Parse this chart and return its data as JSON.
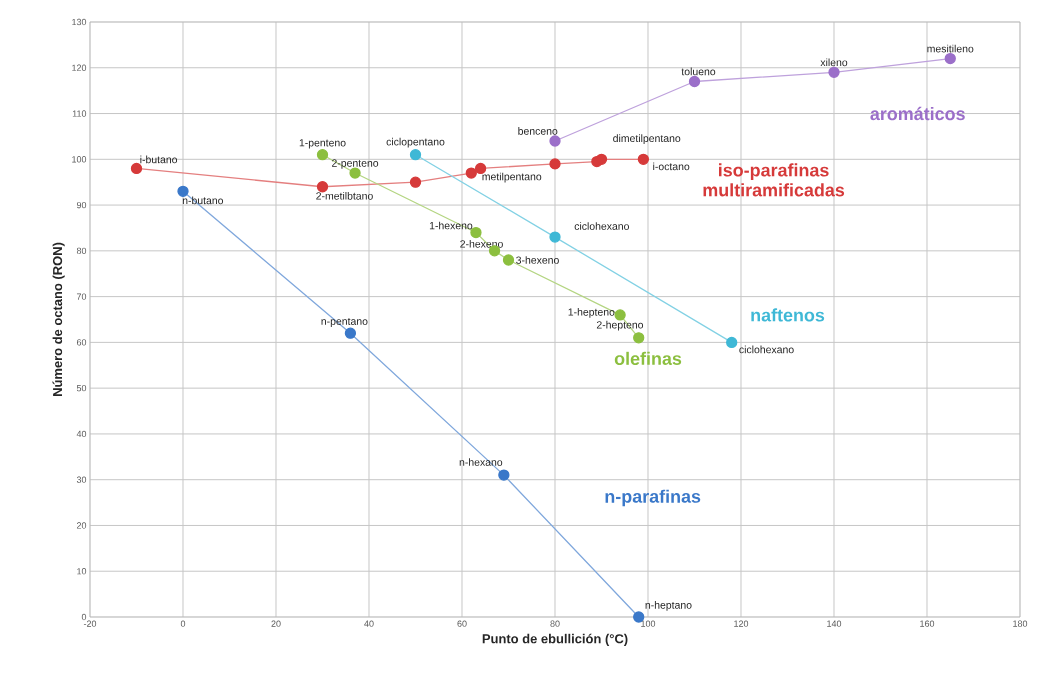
{
  "chart_data": {
    "type": "line",
    "xlabel": "Punto de ebullición (°C)",
    "ylabel": "Número de octano (RON)",
    "xlim": [
      -20,
      180
    ],
    "xticks": [
      -20,
      0,
      20,
      40,
      60,
      80,
      100,
      120,
      140,
      160,
      180
    ],
    "ylim": [
      0,
      130
    ],
    "yticks": [
      0,
      10,
      20,
      30,
      40,
      50,
      60,
      70,
      80,
      90,
      100,
      110,
      120,
      130
    ],
    "grid": true,
    "marker": "circle",
    "line_style": "solid",
    "legend": false,
    "series": [
      {
        "name": "n-parafinas",
        "color": "#3a78c9",
        "x": [
          0,
          36,
          69,
          98
        ],
        "values": [
          93,
          62,
          31,
          0
        ]
      },
      {
        "name": "iso-parafinas multiramificadas",
        "color": "#d63a3a",
        "x": [
          -10,
          30,
          50,
          62,
          64,
          80,
          89,
          90,
          99
        ],
        "values": [
          98,
          94,
          95,
          97,
          98,
          99,
          99.5,
          100,
          100
        ]
      },
      {
        "name": "olefinas",
        "color": "#8cbf3f",
        "x": [
          30,
          37,
          63,
          67,
          70,
          94,
          98
        ],
        "values": [
          101,
          97,
          84,
          80,
          78,
          66,
          61
        ]
      },
      {
        "name": "naftenos",
        "color": "#3fb8d6",
        "x": [
          50,
          80,
          118
        ],
        "values": [
          101,
          83,
          60
        ]
      },
      {
        "name": "aromáticos",
        "color": "#9b6fc9",
        "x": [
          80,
          110,
          140,
          165
        ],
        "values": [
          104,
          117,
          119,
          122
        ]
      }
    ],
    "annotations": [
      {
        "text": "i-butano",
        "x": -10,
        "y": 98
      },
      {
        "text": "n-butano",
        "x": 0,
        "y": 93
      },
      {
        "text": "n-pentano",
        "x": 36,
        "y": 62
      },
      {
        "text": "n-hexano",
        "x": 69,
        "y": 31
      },
      {
        "text": "n-heptano",
        "x": 98,
        "y": 0
      },
      {
        "text": "1-penteno",
        "x": 30,
        "y": 101
      },
      {
        "text": "2-penteno",
        "x": 37,
        "y": 97
      },
      {
        "text": "2-metilbtano",
        "x": 30,
        "y": 94
      },
      {
        "text": "metilpentano",
        "x": 64,
        "y": 98
      },
      {
        "text": "dimetilpentano",
        "x": 90,
        "y": 100
      },
      {
        "text": "i-octano",
        "x": 99,
        "y": 100
      },
      {
        "text": "ciclopentano",
        "x": 50,
        "y": 101
      },
      {
        "text": "ciclohexano",
        "x": 80,
        "y": 83
      },
      {
        "text": "ciclohexano",
        "x": 118,
        "y": 60
      },
      {
        "text": "benceno",
        "x": 80,
        "y": 104
      },
      {
        "text": "tolueno",
        "x": 110,
        "y": 117
      },
      {
        "text": "xileno",
        "x": 140,
        "y": 119
      },
      {
        "text": "mesitileno",
        "x": 165,
        "y": 122
      },
      {
        "text": "1-hexeno",
        "x": 63,
        "y": 84
      },
      {
        "text": "2-hexeno",
        "x": 67,
        "y": 80
      },
      {
        "text": "3-hexeno",
        "x": 70,
        "y": 78
      },
      {
        "text": "1-hepteno",
        "x": 94,
        "y": 66
      },
      {
        "text": "2-hepteno",
        "x": 98,
        "y": 61
      }
    ]
  }
}
